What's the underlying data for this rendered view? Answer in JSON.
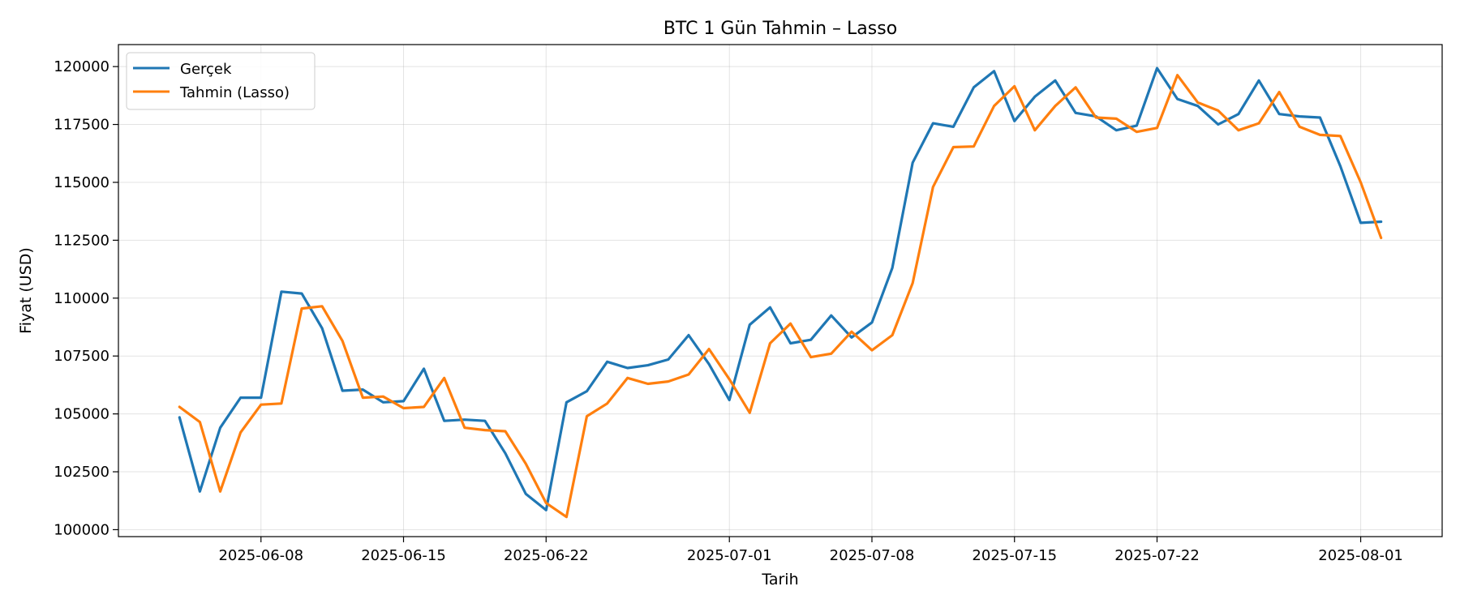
{
  "chart_data": {
    "type": "line",
    "title": "BTC 1 Gün Tahmin – Lasso",
    "xlabel": "Tarih",
    "ylabel": "Fiyat (USD)",
    "x": [
      "2025-06-04",
      "2025-06-05",
      "2025-06-06",
      "2025-06-07",
      "2025-06-08",
      "2025-06-09",
      "2025-06-10",
      "2025-06-11",
      "2025-06-12",
      "2025-06-13",
      "2025-06-14",
      "2025-06-15",
      "2025-06-16",
      "2025-06-17",
      "2025-06-18",
      "2025-06-19",
      "2025-06-20",
      "2025-06-21",
      "2025-06-22",
      "2025-06-23",
      "2025-06-24",
      "2025-06-25",
      "2025-06-26",
      "2025-06-27",
      "2025-06-28",
      "2025-06-29",
      "2025-06-30",
      "2025-07-01",
      "2025-07-02",
      "2025-07-03",
      "2025-07-04",
      "2025-07-05",
      "2025-07-06",
      "2025-07-07",
      "2025-07-08",
      "2025-07-09",
      "2025-07-10",
      "2025-07-11",
      "2025-07-12",
      "2025-07-13",
      "2025-07-14",
      "2025-07-15",
      "2025-07-16",
      "2025-07-17",
      "2025-07-18",
      "2025-07-19",
      "2025-07-20",
      "2025-07-21",
      "2025-07-22",
      "2025-07-23",
      "2025-07-24",
      "2025-07-25",
      "2025-07-26",
      "2025-07-27",
      "2025-07-28",
      "2025-07-29",
      "2025-07-30",
      "2025-07-31",
      "2025-08-01",
      "2025-08-02"
    ],
    "series": [
      {
        "name": "Gerçek",
        "color": "#1f77b4",
        "values": [
          104850,
          101650,
          104400,
          105700,
          105700,
          110280,
          110200,
          108700,
          106000,
          106050,
          105500,
          105550,
          106950,
          104700,
          104750,
          104700,
          103300,
          101550,
          100850,
          105500,
          105980,
          107250,
          106980,
          107100,
          107350,
          108400,
          107150,
          105600,
          108850,
          109600,
          108050,
          108200,
          109250,
          108300,
          108950,
          111300,
          115850,
          117550,
          117400,
          119100,
          119800,
          117650,
          118700,
          119400,
          118000,
          117850,
          117250,
          117450,
          119930,
          118600,
          118300,
          117500,
          117950,
          119400,
          117950,
          117850,
          117800,
          115700,
          113250,
          113300
        ]
      },
      {
        "name": "Tahmin (Lasso)",
        "color": "#ff7f0e",
        "values": [
          105300,
          104650,
          101650,
          104200,
          105400,
          105450,
          109550,
          109650,
          108150,
          105700,
          105750,
          105250,
          105300,
          106550,
          104400,
          104300,
          104250,
          102850,
          101150,
          100550,
          104900,
          105450,
          106550,
          106300,
          106400,
          106700,
          107800,
          106500,
          105050,
          108050,
          108900,
          107450,
          107600,
          108550,
          107750,
          108400,
          110650,
          114800,
          116520,
          116550,
          118300,
          119150,
          117250,
          118300,
          119100,
          117800,
          117750,
          117180,
          117350,
          119630,
          118450,
          118100,
          117250,
          117550,
          118900,
          117400,
          117050,
          117000,
          115000,
          112600
        ]
      }
    ],
    "xticks": [
      "2025-06-08",
      "2025-06-15",
      "2025-06-22",
      "2025-07-01",
      "2025-07-08",
      "2025-07-15",
      "2025-07-22",
      "2025-08-01"
    ],
    "yticks": [
      100000,
      102500,
      105000,
      107500,
      110000,
      112500,
      115000,
      117500,
      120000
    ],
    "xlim": [
      "2025-06-01",
      "2025-08-05"
    ],
    "ylim": [
      99700,
      120950
    ],
    "grid": true,
    "legend": "top-left"
  }
}
